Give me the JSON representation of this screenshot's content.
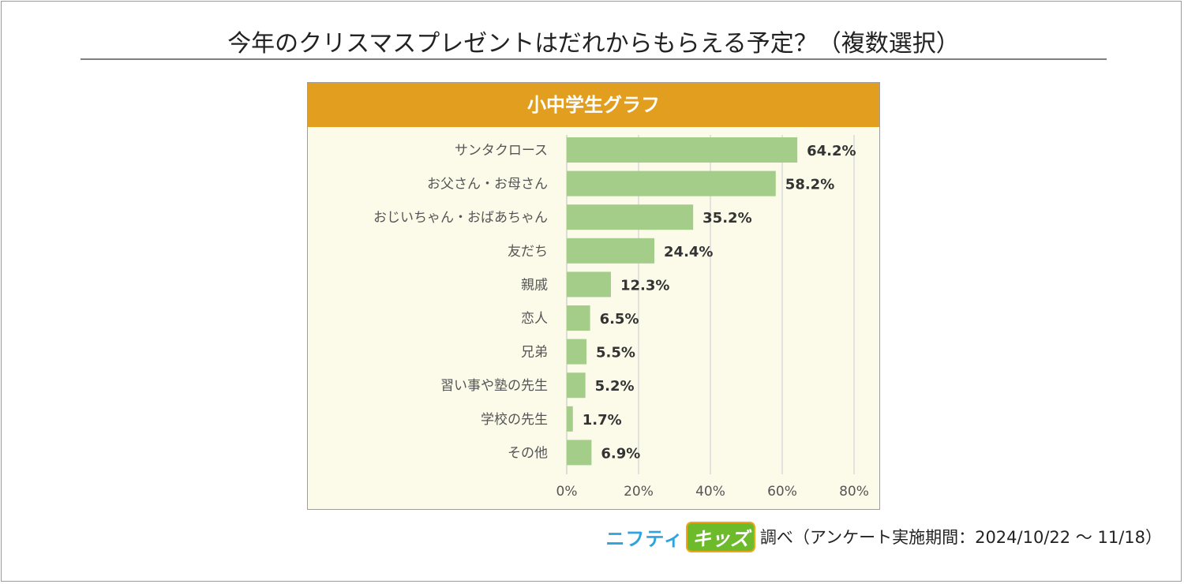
{
  "title": "今年のクリスマスプレゼントはだれからもらえる予定？（複数選択）",
  "panel_header": "小中学生グラフ",
  "source": {
    "brand_part1": "ニフティ",
    "brand_part2": "キッズ",
    "text": "調べ（アンケート実施期間：2024/10/22 ～ 11/18）"
  },
  "colors": {
    "bar": "#a5cd8a",
    "header": "#e19e1f",
    "panel_bg": "#fcfbea",
    "grid": "#d9d9d9"
  },
  "chart_data": {
    "type": "bar",
    "orientation": "horizontal",
    "title": "小中学生グラフ",
    "categories": [
      "サンタクロース",
      "お父さん・お母さん",
      "おじいちゃん・おばあちゃん",
      "友だち",
      "親戚",
      "恋人",
      "兄弟",
      "習い事や塾の先生",
      "学校の先生",
      "その他"
    ],
    "values": [
      64.2,
      58.2,
      35.2,
      24.4,
      12.3,
      6.5,
      5.5,
      5.2,
      1.7,
      6.9
    ],
    "value_labels": [
      "64.2%",
      "58.2%",
      "35.2%",
      "24.4%",
      "12.3%",
      "6.5%",
      "5.5%",
      "5.2%",
      "1.7%",
      "6.9%"
    ],
    "xlim": [
      0,
      80
    ],
    "xticks": [
      0,
      20,
      40,
      60,
      80
    ],
    "xtick_labels": [
      "0%",
      "20%",
      "40%",
      "60%",
      "80%"
    ],
    "grid": true,
    "xlabel": "",
    "ylabel": ""
  }
}
